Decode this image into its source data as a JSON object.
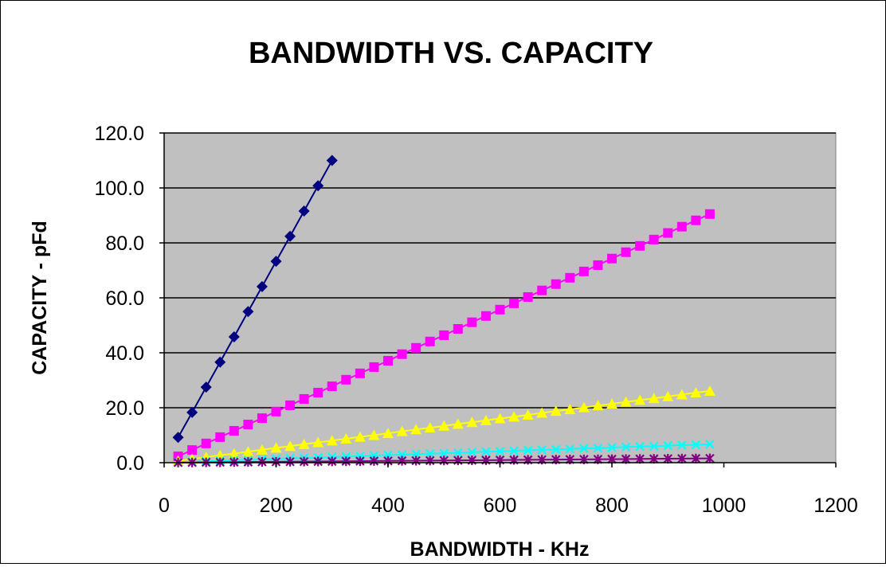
{
  "chart_data": {
    "type": "scatter",
    "title": "BANDWIDTH VS. CAPACITY",
    "xlabel": "BANDWIDTH - KHz",
    "ylabel": "CAPACITY - pFd",
    "xlim": [
      0,
      1200
    ],
    "ylim": [
      0,
      120
    ],
    "xticks": [
      "0",
      "200",
      "400",
      "600",
      "800",
      "1000",
      "1200"
    ],
    "yticks": [
      "0.0",
      "20.0",
      "40.0",
      "60.0",
      "80.0",
      "100.0",
      "120.0"
    ],
    "grid": "horizontal",
    "legend": "none",
    "plot_background": "#c0c0c0",
    "series": [
      {
        "marker": "diamond",
        "color": "#000080",
        "x": [
          25,
          50,
          75,
          100,
          125,
          150,
          175,
          200,
          225,
          250,
          275,
          300
        ],
        "y": [
          9.2,
          18.3,
          27.5,
          36.6,
          45.8,
          55.0,
          64.1,
          73.3,
          82.4,
          91.6,
          100.8,
          110.0
        ]
      },
      {
        "marker": "square",
        "color": "#ff00ff",
        "x": [
          25,
          50,
          75,
          100,
          125,
          150,
          175,
          200,
          225,
          250,
          275,
          300,
          325,
          350,
          375,
          400,
          425,
          450,
          475,
          500,
          525,
          550,
          575,
          600,
          625,
          650,
          675,
          700,
          725,
          750,
          775,
          800,
          825,
          850,
          875,
          900,
          925,
          950,
          975
        ],
        "y": [
          2.3,
          4.6,
          7.0,
          9.3,
          11.6,
          13.9,
          16.2,
          18.6,
          20.9,
          23.2,
          25.5,
          27.8,
          30.2,
          32.5,
          34.8,
          37.1,
          39.5,
          41.8,
          44.1,
          46.4,
          48.7,
          51.1,
          53.4,
          55.7,
          58.0,
          60.3,
          62.7,
          65.0,
          67.3,
          69.6,
          71.9,
          74.3,
          76.6,
          78.9,
          81.2,
          83.6,
          85.9,
          88.2,
          90.5
        ]
      },
      {
        "marker": "triangle",
        "color": "#ffff00",
        "x": [
          25,
          50,
          75,
          100,
          125,
          150,
          175,
          200,
          225,
          250,
          275,
          300,
          325,
          350,
          375,
          400,
          425,
          450,
          475,
          500,
          525,
          550,
          575,
          600,
          625,
          650,
          675,
          700,
          725,
          750,
          775,
          800,
          825,
          850,
          875,
          900,
          925,
          950,
          975
        ],
        "y": [
          0.7,
          1.3,
          2.0,
          2.7,
          3.3,
          4.0,
          4.7,
          5.4,
          6.0,
          6.7,
          7.4,
          8.0,
          8.7,
          9.4,
          10.0,
          10.7,
          11.4,
          12.1,
          12.7,
          13.4,
          14.1,
          14.7,
          15.4,
          16.1,
          16.7,
          17.4,
          18.1,
          18.8,
          19.4,
          20.1,
          20.8,
          21.4,
          22.1,
          22.8,
          23.4,
          24.1,
          24.8,
          25.5,
          26.1
        ]
      },
      {
        "marker": "x",
        "color": "#00ffff",
        "x": [
          25,
          50,
          75,
          100,
          125,
          150,
          175,
          200,
          225,
          250,
          275,
          300,
          325,
          350,
          375,
          400,
          425,
          450,
          475,
          500,
          525,
          550,
          575,
          600,
          625,
          650,
          675,
          700,
          725,
          750,
          775,
          800,
          825,
          850,
          875,
          900,
          925,
          950,
          975
        ],
        "y": [
          0.2,
          0.3,
          0.5,
          0.7,
          0.9,
          1.0,
          1.2,
          1.4,
          1.6,
          1.7,
          1.9,
          2.1,
          2.2,
          2.4,
          2.6,
          2.8,
          2.9,
          3.1,
          3.3,
          3.4,
          3.6,
          3.8,
          4.0,
          4.1,
          4.3,
          4.5,
          4.7,
          4.8,
          5.0,
          5.2,
          5.3,
          5.5,
          5.7,
          5.9,
          6.0,
          6.2,
          6.4,
          6.5,
          6.7
        ]
      },
      {
        "marker": "asterisk",
        "color": "#800080",
        "x": [
          25,
          50,
          75,
          100,
          125,
          150,
          175,
          200,
          225,
          250,
          275,
          300,
          325,
          350,
          375,
          400,
          425,
          450,
          475,
          500,
          525,
          550,
          575,
          600,
          625,
          650,
          675,
          700,
          725,
          750,
          775,
          800,
          825,
          850,
          875,
          900,
          925,
          950,
          975
        ],
        "y": [
          0.04,
          0.08,
          0.12,
          0.16,
          0.2,
          0.24,
          0.28,
          0.32,
          0.36,
          0.4,
          0.44,
          0.48,
          0.52,
          0.56,
          0.6,
          0.64,
          0.68,
          0.72,
          0.76,
          0.8,
          0.84,
          0.88,
          0.92,
          0.96,
          1.0,
          1.04,
          1.08,
          1.12,
          1.16,
          1.2,
          1.24,
          1.28,
          1.32,
          1.36,
          1.4,
          1.44,
          1.48,
          1.52,
          1.56
        ]
      }
    ]
  }
}
